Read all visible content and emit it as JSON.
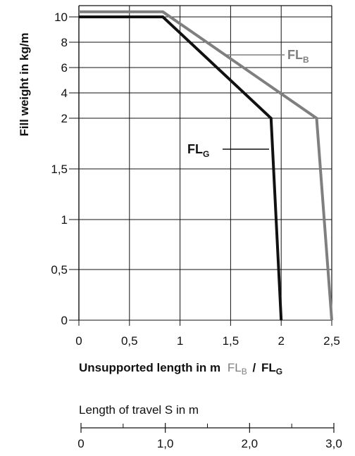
{
  "chart_data": {
    "type": "line",
    "ylabel": "Fill weight in kg/m",
    "xlabel_main": "Unsupported length in m",
    "xlabel_series": [
      {
        "name": "FL",
        "sub": "B",
        "color": "#7f7f7f"
      },
      {
        "name": "FL",
        "sub": "G",
        "color": "#111111"
      }
    ],
    "xlabel_separator": "/",
    "xlim": [
      0,
      2.5
    ],
    "x_ticks": [
      "0",
      "0,5",
      "1",
      "1,5",
      "2",
      "2,5"
    ],
    "y_tick_labels": [
      "0",
      "0,5",
      "1",
      "1,5",
      "2",
      "4",
      "6",
      "8",
      "10"
    ],
    "y_tick_values": [
      0,
      0.5,
      1,
      1.5,
      2,
      4,
      6,
      8,
      10
    ],
    "y_scale": "piecewise: linear 0–2 (lower), compressed 2–10 (upper)",
    "grid": true,
    "series": [
      {
        "label": "FL",
        "sub": "B",
        "color": "#7f7f7f",
        "points": [
          [
            0,
            10.4
          ],
          [
            0.83,
            10.4
          ],
          [
            2.35,
            2
          ],
          [
            2.5,
            0
          ]
        ]
      },
      {
        "label": "FL",
        "sub": "G",
        "color": "#111111",
        "points": [
          [
            0,
            10.0
          ],
          [
            0.83,
            10.0
          ],
          [
            1.9,
            2
          ],
          [
            2.0,
            0
          ]
        ]
      }
    ],
    "secondary_axis": {
      "title": "Length of travel S in m",
      "range": [
        0,
        3
      ],
      "tick_labels": [
        "0",
        "1,0",
        "2,0",
        "3,0"
      ],
      "tick_values": [
        0,
        1,
        2,
        3
      ],
      "minor_tick_values": [
        0.5,
        1.5,
        2.5
      ]
    }
  }
}
